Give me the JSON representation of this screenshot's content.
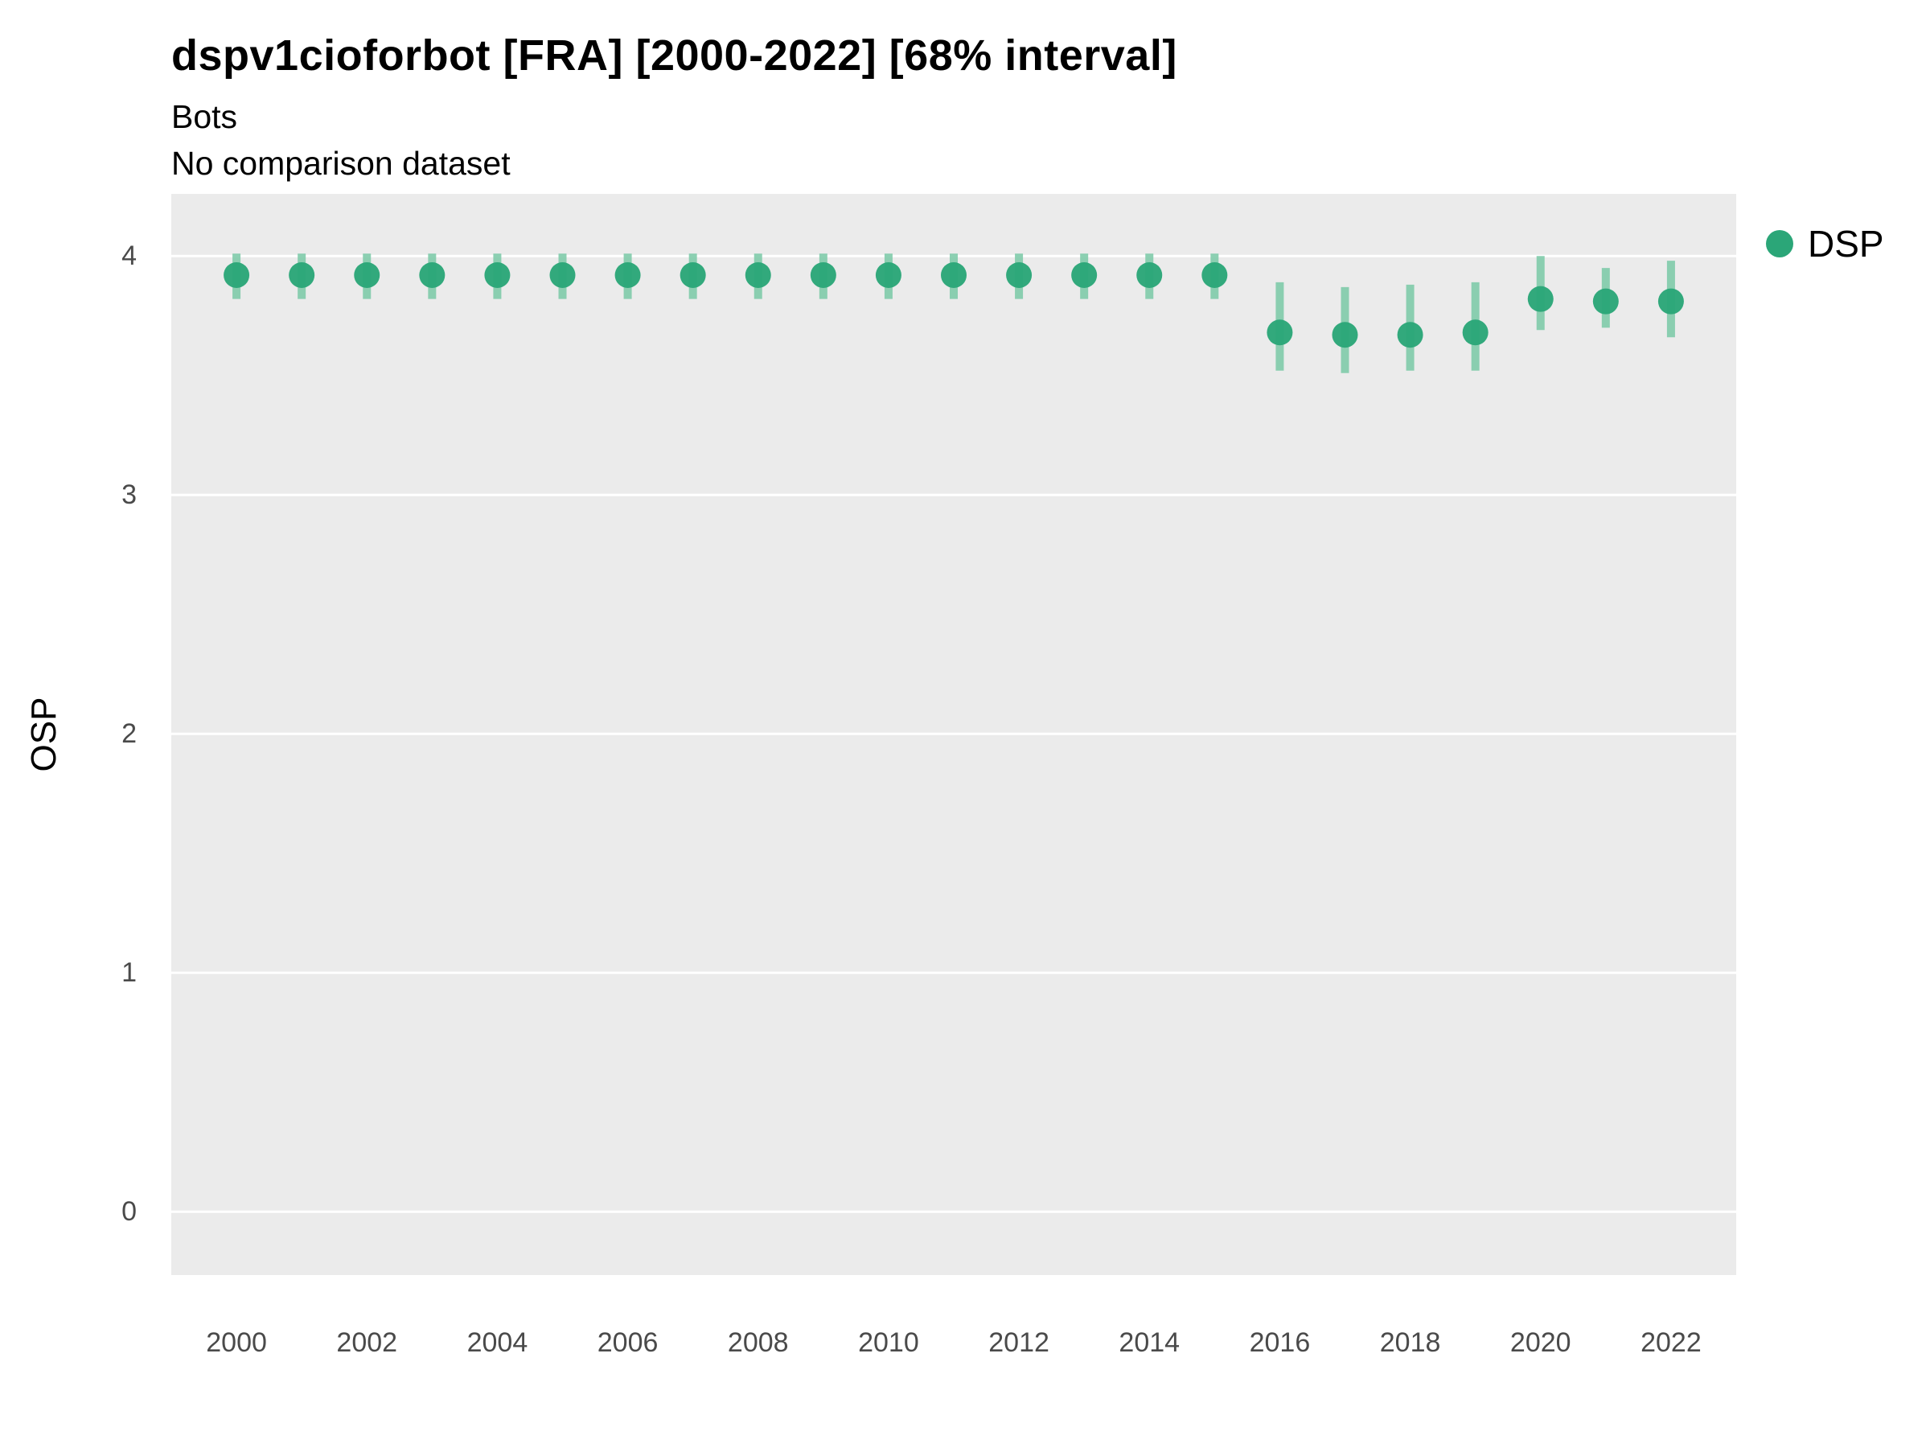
{
  "header": {
    "title": "dspv1cioforbot [FRA] [2000-2022] [68% interval]",
    "subtitle": "Bots",
    "subtitle2": "No comparison dataset"
  },
  "legend": {
    "items": [
      {
        "label": "DSP",
        "color": "#2BA678"
      }
    ]
  },
  "chart_data": {
    "type": "scatter",
    "title": "dspv1cioforbot [FRA] [2000-2022] [68% interval]",
    "subtitle": "Bots",
    "note": "No comparison dataset",
    "xlabel": "",
    "ylabel": "OSP",
    "interval": "68%",
    "legend_position": "right",
    "grid": "horizontal-major",
    "xlim": [
      1999,
      2023
    ],
    "ylim": [
      -0.265,
      4.26
    ],
    "x_ticks": [
      2000,
      2002,
      2004,
      2006,
      2008,
      2010,
      2012,
      2014,
      2016,
      2018,
      2020,
      2022
    ],
    "y_ticks": [
      0,
      1,
      2,
      3,
      4
    ],
    "x": [
      2000,
      2001,
      2002,
      2003,
      2004,
      2005,
      2006,
      2007,
      2008,
      2009,
      2010,
      2011,
      2012,
      2013,
      2014,
      2015,
      2016,
      2017,
      2018,
      2019,
      2020,
      2021,
      2022
    ],
    "series": [
      {
        "name": "DSP",
        "values": [
          3.92,
          3.92,
          3.92,
          3.92,
          3.92,
          3.92,
          3.92,
          3.92,
          3.92,
          3.92,
          3.92,
          3.92,
          3.92,
          3.92,
          3.92,
          3.92,
          3.68,
          3.67,
          3.67,
          3.68,
          3.82,
          3.81,
          3.81
        ],
        "lower": [
          3.82,
          3.82,
          3.82,
          3.82,
          3.82,
          3.82,
          3.82,
          3.82,
          3.82,
          3.82,
          3.82,
          3.82,
          3.82,
          3.82,
          3.82,
          3.82,
          3.52,
          3.51,
          3.52,
          3.52,
          3.69,
          3.7,
          3.66
        ],
        "upper": [
          4.01,
          4.01,
          4.01,
          4.01,
          4.01,
          4.01,
          4.01,
          4.01,
          4.01,
          4.01,
          4.01,
          4.01,
          4.01,
          4.01,
          4.01,
          4.01,
          3.89,
          3.87,
          3.88,
          3.89,
          4.0,
          3.95,
          3.98
        ]
      }
    ],
    "colors": {
      "point": "#2BA678",
      "interval": "#7FCBAA",
      "panel": "#EBEBEB",
      "grid": "#FFFFFF",
      "tick_text": "#4a4a4a"
    }
  }
}
